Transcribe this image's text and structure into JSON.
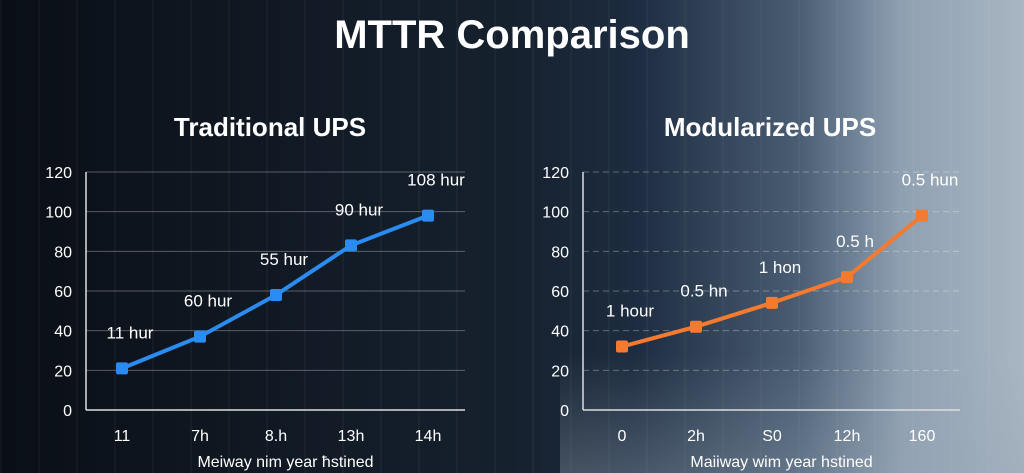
{
  "title": "MTTR Comparison",
  "chart_data": [
    {
      "type": "line",
      "title": "Traditional UPS",
      "categories": [
        "11",
        "7h",
        "8.h",
        "13h",
        "14h"
      ],
      "values": [
        21,
        37,
        58,
        83,
        98
      ],
      "data_labels": [
        "11 hur",
        "60 hur",
        "55 hur",
        "90 hur",
        "108 hur"
      ],
      "xlabel": "Meiway   nim year ħstined",
      "ylabel": "",
      "ylim": [
        0,
        120
      ],
      "yticks": [
        0,
        20,
        40,
        60,
        80,
        100,
        120
      ],
      "color": "#2a8cf0",
      "grid": true
    },
    {
      "type": "line",
      "title": "Modularized UPS",
      "categories": [
        "0",
        "2h",
        "S0",
        "12h",
        "160"
      ],
      "values": [
        32,
        42,
        54,
        67,
        98
      ],
      "data_labels": [
        "1 hour",
        "0.5 hn",
        "1 hon",
        "0.5 h",
        "0.5 hun"
      ],
      "xlabel": "Maiiway  wim year hstined",
      "ylabel": "",
      "ylim": [
        0,
        120
      ],
      "yticks": [
        0,
        20,
        40,
        60,
        80,
        100,
        120
      ],
      "color": "#f47a30",
      "grid": true
    }
  ]
}
